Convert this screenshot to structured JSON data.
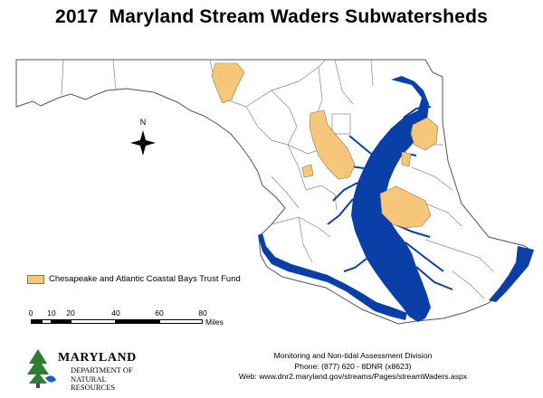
{
  "title": "2017  Maryland Stream Waders Subwatersheds",
  "north_arrow": {
    "label": "N",
    "icon": "north-arrow-icon"
  },
  "legend": {
    "label": "Chesapeake and Atlantic Coastal Bays Trust Fund",
    "swatch_color": "#f6c77b"
  },
  "scale_bar": {
    "ticks": [
      "0",
      "10",
      "20",
      "40",
      "60",
      "80"
    ],
    "unit": "Miles"
  },
  "colors": {
    "water": "#0a3fa8",
    "land": "#ffffff",
    "boundary": "#888888",
    "highlight": "#f6c77b"
  },
  "footer": {
    "line1": "Monitoring and Non-tidal Assessment Division",
    "line2": "Phone: (877) 620 - 8DNR (x8623)",
    "line3": "Web: www.dnr2.maryland.gov/streams/Pages/streamWaders.aspx"
  },
  "logo": {
    "line1": "MARYLAND",
    "line2": "DEPARTMENT OF",
    "line3": "NATURAL RESOURCES"
  }
}
